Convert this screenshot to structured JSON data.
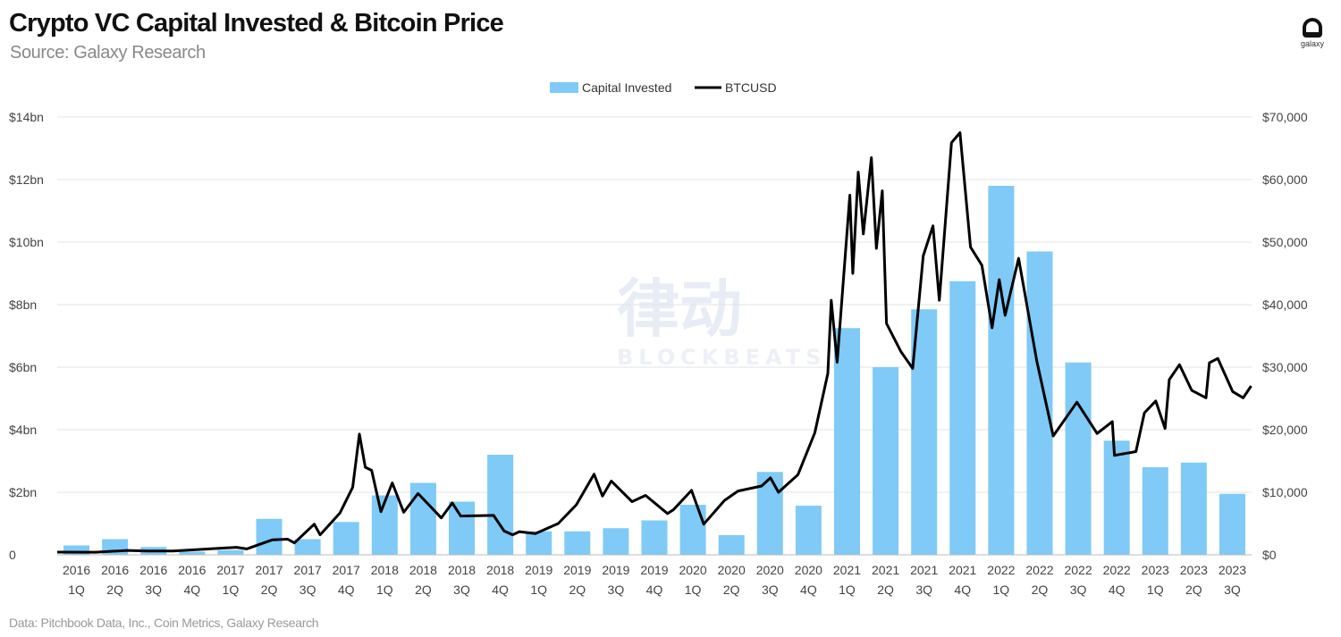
{
  "header": {
    "title": "Crypto VC Capital Invested & Bitcoin Price",
    "subtitle": "Source: Galaxy Research",
    "logo_text": "galaxy"
  },
  "footer": {
    "note": "Data: Pitchbook Data, Inc., Coin Metrics, Galaxy Research"
  },
  "watermark": {
    "main": "律动",
    "sub": "BLOCKBEATS"
  },
  "colors": {
    "bar": "#7fcaf7",
    "line": "#000000",
    "grid": "#e3e3e3"
  },
  "chart_data": {
    "type": "bar+line",
    "legend": {
      "placement": "top-center",
      "entries": [
        "Capital Invested",
        "BTCUSD"
      ]
    },
    "grid": true,
    "categories": [
      "2016 1Q",
      "2016 2Q",
      "2016 3Q",
      "2016 4Q",
      "2017 1Q",
      "2017 2Q",
      "2017 3Q",
      "2017 4Q",
      "2018 1Q",
      "2018 2Q",
      "2018 3Q",
      "2018 4Q",
      "2019 1Q",
      "2019 2Q",
      "2019 3Q",
      "2019 4Q",
      "2020 1Q",
      "2020 2Q",
      "2020 3Q",
      "2020 4Q",
      "2021 1Q",
      "2021 2Q",
      "2021 3Q",
      "2021 4Q",
      "2022 1Q",
      "2022 2Q",
      "2022 3Q",
      "2022 4Q",
      "2023 1Q",
      "2023 2Q",
      "2023 3Q"
    ],
    "left_axis": {
      "ticks": [
        "0",
        "$2bn",
        "$4bn",
        "$6bn",
        "$8bn",
        "$10bn",
        "$12bn",
        "$14bn"
      ],
      "range": [
        0,
        14
      ],
      "unit": "bn USD"
    },
    "right_axis": {
      "ticks": [
        "$0",
        "$10,000",
        "$20,000",
        "$30,000",
        "$40,000",
        "$50,000",
        "$60,000",
        "$70,000"
      ],
      "range": [
        0,
        70000
      ]
    },
    "series": [
      {
        "name": "Capital Invested",
        "type": "bar",
        "axis": "left",
        "values": [
          0.3,
          0.5,
          0.25,
          0.1,
          0.15,
          1.15,
          0.5,
          1.05,
          1.9,
          2.3,
          1.7,
          3.2,
          0.75,
          0.75,
          0.85,
          1.1,
          1.6,
          0.63,
          2.65,
          1.57,
          7.25,
          6.0,
          7.85,
          8.75,
          11.8,
          9.7,
          6.15,
          3.65,
          2.8,
          2.95,
          1.95
        ]
      },
      {
        "name": "BTCUSD",
        "type": "line",
        "axis": "right",
        "points": [
          [
            "2016-01-01",
            430
          ],
          [
            "2016-04-01",
            420
          ],
          [
            "2016-06-15",
            700
          ],
          [
            "2016-08-01",
            600
          ],
          [
            "2016-10-01",
            610
          ],
          [
            "2016-12-31",
            960
          ],
          [
            "2017-03-01",
            1200
          ],
          [
            "2017-03-25",
            950
          ],
          [
            "2017-05-25",
            2400
          ],
          [
            "2017-06-30",
            2500
          ],
          [
            "2017-07-16",
            1900
          ],
          [
            "2017-09-01",
            4900
          ],
          [
            "2017-09-15",
            3200
          ],
          [
            "2017-11-01",
            6700
          ],
          [
            "2017-12-01",
            10800
          ],
          [
            "2017-12-17",
            19300
          ],
          [
            "2017-12-31",
            14000
          ],
          [
            "2018-01-15",
            13500
          ],
          [
            "2018-02-06",
            6900
          ],
          [
            "2018-03-05",
            11500
          ],
          [
            "2018-04-01",
            6800
          ],
          [
            "2018-05-05",
            9800
          ],
          [
            "2018-06-29",
            5900
          ],
          [
            "2018-07-25",
            8300
          ],
          [
            "2018-08-14",
            6200
          ],
          [
            "2018-10-31",
            6300
          ],
          [
            "2018-11-25",
            3800
          ],
          [
            "2018-12-15",
            3200
          ],
          [
            "2018-12-31",
            3700
          ],
          [
            "2019-02-07",
            3400
          ],
          [
            "2019-04-02",
            5000
          ],
          [
            "2019-05-15",
            8000
          ],
          [
            "2019-06-26",
            12900
          ],
          [
            "2019-07-16",
            9400
          ],
          [
            "2019-08-06",
            11800
          ],
          [
            "2019-09-24",
            8500
          ],
          [
            "2019-10-26",
            9500
          ],
          [
            "2019-12-17",
            6600
          ],
          [
            "2019-12-31",
            7200
          ],
          [
            "2020-02-12",
            10300
          ],
          [
            "2020-03-12",
            4900
          ],
          [
            "2020-04-30",
            8700
          ],
          [
            "2020-06-01",
            10200
          ],
          [
            "2020-07-27",
            11000
          ],
          [
            "2020-08-17",
            12300
          ],
          [
            "2020-09-05",
            10000
          ],
          [
            "2020-10-21",
            12800
          ],
          [
            "2020-11-30",
            19500
          ],
          [
            "2020-12-31",
            29000
          ],
          [
            "2021-01-08",
            40700
          ],
          [
            "2021-01-22",
            30800
          ],
          [
            "2021-02-21",
            57500
          ],
          [
            "2021-02-28",
            45000
          ],
          [
            "2021-03-13",
            61200
          ],
          [
            "2021-03-25",
            51300
          ],
          [
            "2021-04-13",
            63500
          ],
          [
            "2021-04-25",
            49000
          ],
          [
            "2021-05-09",
            58200
          ],
          [
            "2021-05-19",
            37000
          ],
          [
            "2021-06-22",
            32500
          ],
          [
            "2021-07-20",
            29800
          ],
          [
            "2021-08-14",
            47800
          ],
          [
            "2021-09-06",
            52600
          ],
          [
            "2021-09-21",
            40700
          ],
          [
            "2021-10-20",
            65900
          ],
          [
            "2021-11-09",
            67500
          ],
          [
            "2021-12-04",
            49200
          ],
          [
            "2021-12-31",
            46300
          ],
          [
            "2022-01-24",
            36300
          ],
          [
            "2022-02-10",
            44000
          ],
          [
            "2022-02-24",
            38300
          ],
          [
            "2022-03-28",
            47400
          ],
          [
            "2022-05-10",
            31000
          ],
          [
            "2022-06-18",
            19000
          ],
          [
            "2022-08-13",
            24400
          ],
          [
            "2022-09-30",
            19400
          ],
          [
            "2022-11-05",
            21300
          ],
          [
            "2022-11-10",
            15900
          ],
          [
            "2022-12-31",
            16500
          ],
          [
            "2023-01-20",
            22700
          ],
          [
            "2023-02-16",
            24600
          ],
          [
            "2023-03-10",
            20200
          ],
          [
            "2023-03-20",
            28000
          ],
          [
            "2023-04-13",
            30400
          ],
          [
            "2023-05-12",
            26300
          ],
          [
            "2023-06-15",
            25100
          ],
          [
            "2023-06-23",
            30700
          ],
          [
            "2023-07-13",
            31400
          ],
          [
            "2023-08-17",
            26100
          ],
          [
            "2023-09-11",
            25100
          ],
          [
            "2023-09-30",
            27000
          ]
        ]
      }
    ]
  }
}
